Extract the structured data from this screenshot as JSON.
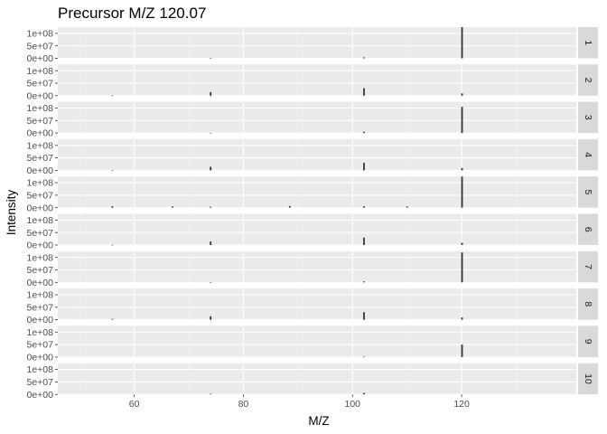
{
  "chart_data": {
    "type": "bar",
    "title": "Precursor M/Z 120.07",
    "xlabel": "M/Z",
    "ylabel": "Intensity",
    "xlim": [
      46,
      141
    ],
    "x_ticks": [
      60,
      80,
      100,
      120
    ],
    "ylim": [
      0,
      125000000
    ],
    "y_ticks": [
      {
        "value": 0,
        "label": "0e+00"
      },
      {
        "value": 50000000,
        "label": "5e+07"
      },
      {
        "value": 100000000,
        "label": "1e+08"
      }
    ],
    "grid": true,
    "facet_by": "scan",
    "panels": [
      {
        "label": "1",
        "peaks": [
          {
            "mz": 120.07,
            "intensity": 130000000
          },
          {
            "mz": 102.1,
            "intensity": 4000000
          },
          {
            "mz": 74.0,
            "intensity": 800000
          }
        ]
      },
      {
        "label": "2",
        "peaks": [
          {
            "mz": 102.1,
            "intensity": 30000000
          },
          {
            "mz": 74.0,
            "intensity": 14000000
          },
          {
            "mz": 120.07,
            "intensity": 9000000
          },
          {
            "mz": 56.0,
            "intensity": 1000000
          }
        ]
      },
      {
        "label": "3",
        "peaks": [
          {
            "mz": 120.07,
            "intensity": 105000000
          },
          {
            "mz": 102.1,
            "intensity": 5000000
          },
          {
            "mz": 74.0,
            "intensity": 800000
          }
        ]
      },
      {
        "label": "4",
        "peaks": [
          {
            "mz": 102.1,
            "intensity": 30000000
          },
          {
            "mz": 74.0,
            "intensity": 14000000
          },
          {
            "mz": 120.07,
            "intensity": 9000000
          },
          {
            "mz": 56.0,
            "intensity": 1000000
          }
        ]
      },
      {
        "label": "5",
        "peaks": [
          {
            "mz": 120.07,
            "intensity": 125000000
          },
          {
            "mz": 56.0,
            "intensity": 6000000
          },
          {
            "mz": 67.0,
            "intensity": 5000000
          },
          {
            "mz": 74.0,
            "intensity": 4000000
          },
          {
            "mz": 88.5,
            "intensity": 7000000
          },
          {
            "mz": 102.1,
            "intensity": 6000000
          },
          {
            "mz": 110.0,
            "intensity": 5000000
          }
        ]
      },
      {
        "label": "6",
        "peaks": [
          {
            "mz": 102.1,
            "intensity": 30000000
          },
          {
            "mz": 74.0,
            "intensity": 14000000
          },
          {
            "mz": 120.07,
            "intensity": 9000000
          },
          {
            "mz": 56.0,
            "intensity": 1000000
          }
        ]
      },
      {
        "label": "7",
        "peaks": [
          {
            "mz": 120.07,
            "intensity": 120000000
          },
          {
            "mz": 102.1,
            "intensity": 4000000
          },
          {
            "mz": 74.0,
            "intensity": 800000
          }
        ]
      },
      {
        "label": "8",
        "peaks": [
          {
            "mz": 102.1,
            "intensity": 30000000
          },
          {
            "mz": 74.0,
            "intensity": 14000000
          },
          {
            "mz": 120.07,
            "intensity": 9000000
          },
          {
            "mz": 56.0,
            "intensity": 3000000
          }
        ]
      },
      {
        "label": "9",
        "peaks": [
          {
            "mz": 120.07,
            "intensity": 50000000
          },
          {
            "mz": 102.1,
            "intensity": 1500000
          }
        ]
      },
      {
        "label": "10",
        "peaks": [
          {
            "mz": 102.1,
            "intensity": 6000000
          },
          {
            "mz": 74.0,
            "intensity": 2500000
          }
        ]
      }
    ]
  }
}
